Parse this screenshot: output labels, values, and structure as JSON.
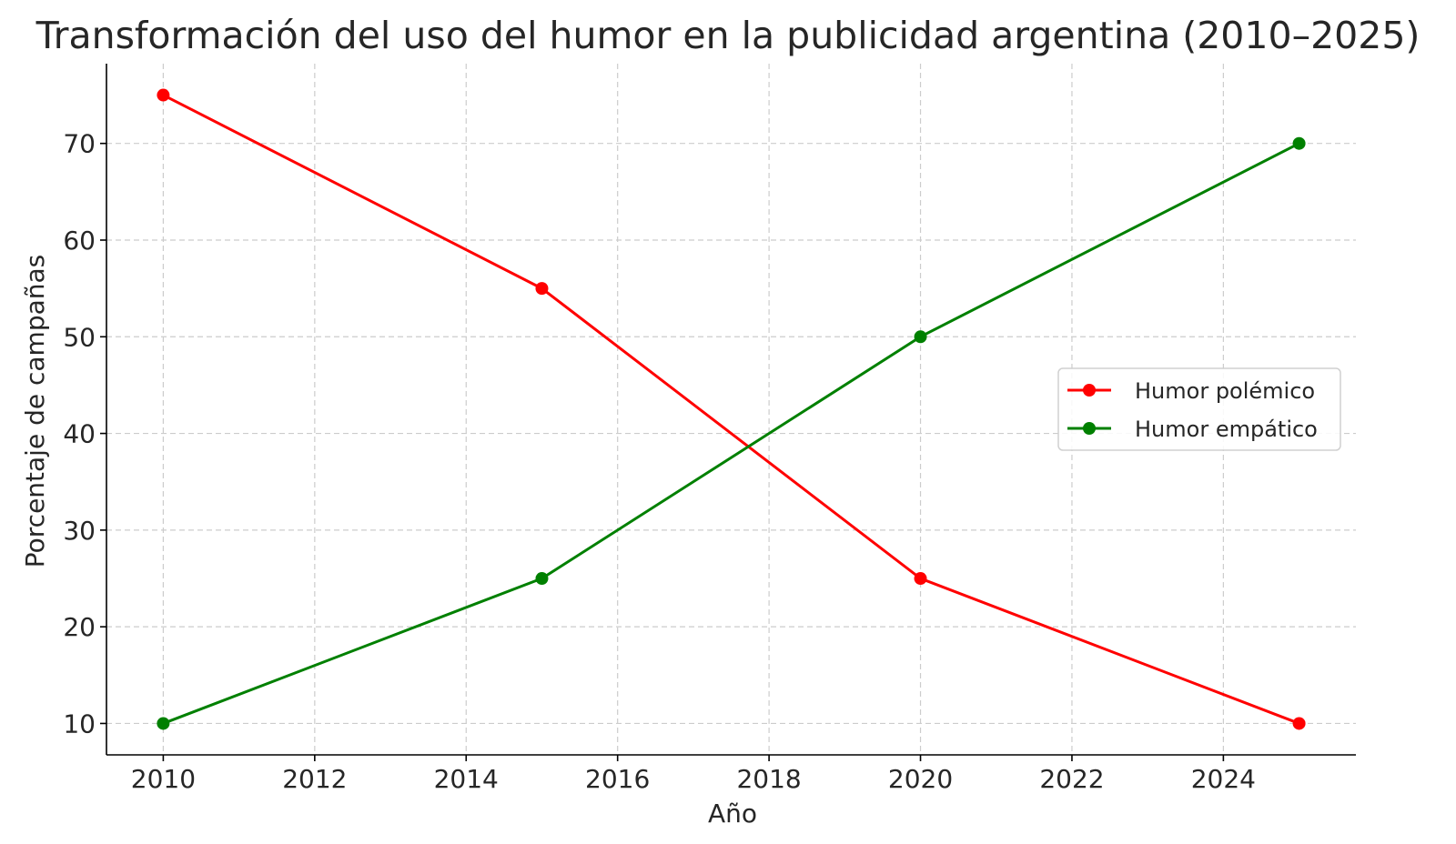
{
  "chart_data": {
    "type": "line",
    "title": "Transformación del uso del humor en la publicidad argentina (2010–2025)",
    "xlabel": "Año",
    "ylabel": "Porcentaje de campañas",
    "x": [
      2010,
      2015,
      2020,
      2025
    ],
    "series": [
      {
        "name": "Humor polémico",
        "values": [
          75,
          55,
          25,
          10
        ],
        "color": "#ff0000"
      },
      {
        "name": "Humor empático",
        "values": [
          10,
          25,
          50,
          70
        ],
        "color": "#008000"
      }
    ],
    "xlim": [
      2009.25,
      2025.75
    ],
    "ylim": [
      6.75,
      78.25
    ],
    "xticks": [
      2010,
      2012,
      2014,
      2016,
      2018,
      2020,
      2022,
      2024
    ],
    "yticks": [
      10,
      20,
      30,
      40,
      50,
      60,
      70
    ],
    "grid": true,
    "legend_position": "center-right"
  }
}
